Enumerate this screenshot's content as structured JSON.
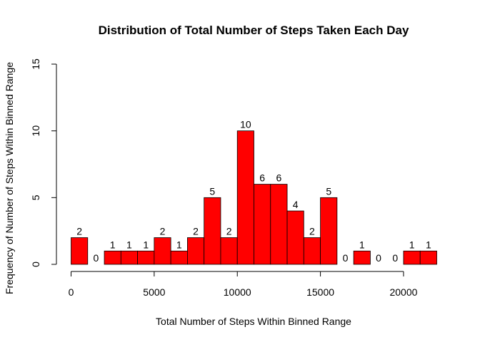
{
  "chart_data": {
    "type": "bar",
    "title": "Distribution of Total Number of Steps Taken Each Day",
    "xlabel": "Total Number of Steps Within Binned Range",
    "ylabel": "Frequency of Number of Steps Within Binned Range",
    "bin_width": 1000,
    "x_start": 0,
    "xlim": [
      0,
      22000
    ],
    "ylim": [
      0,
      15
    ],
    "x_ticks": [
      0,
      5000,
      10000,
      15000,
      20000
    ],
    "y_ticks": [
      0,
      5,
      10,
      15
    ],
    "values": [
      2,
      0,
      1,
      1,
      1,
      2,
      1,
      2,
      5,
      2,
      10,
      6,
      6,
      4,
      2,
      5,
      0,
      1,
      0,
      0,
      1,
      1
    ],
    "bar_color": "#FF0000",
    "grid": false
  }
}
